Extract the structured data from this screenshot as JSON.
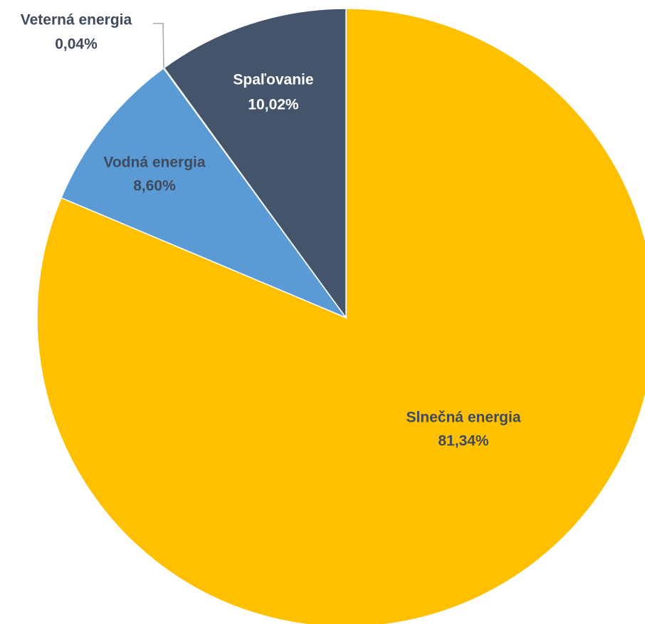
{
  "chart_data": {
    "type": "pie",
    "title": "",
    "start_angle_deg": 0,
    "direction": "clockwise",
    "slices": [
      {
        "label": "Slnečná energia",
        "value": 81.34,
        "value_label": "81,34%",
        "color": "#FFC000",
        "label_color": "#3F4A5E"
      },
      {
        "label": "Vodná energia",
        "value": 8.6,
        "value_label": "8,60%",
        "color": "#5B9BD5",
        "label_color": "#3F4A5E"
      },
      {
        "label": "Veterná energia",
        "value": 0.04,
        "value_label": "0,04%",
        "color": "#7FB77E",
        "label_color": "#3F4A5E"
      },
      {
        "label": "Spaľovanie",
        "value": 10.02,
        "value_label": "10,02%",
        "color": "#44546A",
        "label_color": "#FFFFFF"
      }
    ],
    "legend": "none"
  }
}
